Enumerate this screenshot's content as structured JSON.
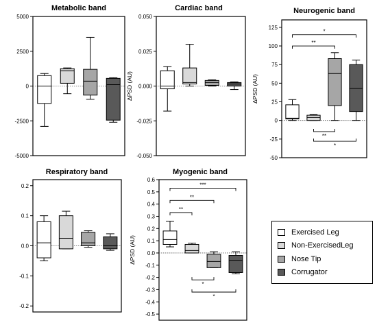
{
  "series_colors": {
    "Exercised Leg": "#ffffff",
    "Non-ExercisedLeg": "#d9d9d9",
    "Nose Tip": "#a6a6a6",
    "Corrugator": "#595959"
  },
  "legend": {
    "items": [
      {
        "label": "Exercised Leg",
        "color": "#ffffff"
      },
      {
        "label": "Non-ExercisedLeg",
        "color": "#d9d9d9"
      },
      {
        "label": "Nose Tip",
        "color": "#a6a6a6"
      },
      {
        "label": "Corrugator",
        "color": "#595959"
      }
    ]
  },
  "chart_data": [
    {
      "type": "box",
      "title": "Metabolic band",
      "ylabel": "",
      "ylim": [
        -5000,
        5000
      ],
      "yticks": [
        -5000,
        -2500,
        0,
        2500,
        5000
      ],
      "tick_labels": [
        "-5000",
        "-2500",
        "0",
        "2500",
        "5000"
      ],
      "zero_line": true,
      "categories": [
        "Exercised Leg",
        "Non-ExercisedLeg",
        "Nose Tip",
        "Corrugator"
      ],
      "boxes": [
        {
          "min": -2900,
          "q1": -1250,
          "median": 0,
          "q3": 750,
          "max": 900
        },
        {
          "min": -550,
          "q1": 200,
          "median": 1100,
          "q3": 1250,
          "max": 1300
        },
        {
          "min": -950,
          "q1": -650,
          "median": 350,
          "q3": 1200,
          "max": 3500
        },
        {
          "min": -2600,
          "q1": -2450,
          "median": 100,
          "q3": 550,
          "max": 600
        }
      ],
      "significance": []
    },
    {
      "type": "box",
      "title": "Cardiac band",
      "ylabel": "ΔPSD (AU)",
      "ylim": [
        -0.05,
        0.05
      ],
      "yticks": [
        -0.05,
        -0.025,
        0,
        0.025,
        0.05
      ],
      "tick_labels": [
        "-0.050",
        "-0.025",
        "0.000",
        "0.025",
        "0.050"
      ],
      "zero_line": true,
      "categories": [
        "Exercised Leg",
        "Non-ExercisedLeg",
        "Nose Tip",
        "Corrugator"
      ],
      "boxes": [
        {
          "min": -0.018,
          "q1": -0.002,
          "median": 0.0,
          "q3": 0.011,
          "max": 0.014
        },
        {
          "min": 0.0,
          "q1": 0.0015,
          "median": 0.0025,
          "q3": 0.013,
          "max": 0.03
        },
        {
          "min": 0.0,
          "q1": 0.0005,
          "median": 0.0025,
          "q3": 0.004,
          "max": 0.0045
        },
        {
          "min": -0.0025,
          "q1": 0.0,
          "median": 0.0015,
          "q3": 0.0025,
          "max": 0.003
        }
      ],
      "significance": []
    },
    {
      "type": "box",
      "title": "Neurogenic band",
      "ylabel": "ΔPSD (AU)",
      "ylim": [
        -50,
        135
      ],
      "yticks": [
        -50,
        -25,
        0,
        25,
        50,
        75,
        100,
        125
      ],
      "tick_labels": [
        "-50",
        "-25",
        "0",
        "25",
        "50",
        "75",
        "100",
        "125"
      ],
      "zero_line": true,
      "categories": [
        "Exercised Leg",
        "Non-ExercisedLeg",
        "Nose Tip",
        "Corrugator"
      ],
      "boxes": [
        {
          "min": 0,
          "q1": 2,
          "median": 3,
          "q3": 21,
          "max": 28
        },
        {
          "min": 0,
          "q1": 0,
          "median": 4,
          "q3": 7,
          "max": 8
        },
        {
          "min": 0,
          "q1": 20,
          "median": 63,
          "q3": 83,
          "max": 91
        },
        {
          "min": 0,
          "q1": 12,
          "median": 43,
          "q3": 75,
          "max": 81
        }
      ],
      "significance": [
        {
          "from": 0,
          "to": 2,
          "y": 100,
          "label": "**"
        },
        {
          "from": 0,
          "to": 3,
          "y": 115,
          "label": "*"
        },
        {
          "from": 1,
          "to": 2,
          "y": -15,
          "label": "**",
          "below": true
        },
        {
          "from": 1,
          "to": 3,
          "y": -28,
          "label": "*",
          "below": true
        }
      ]
    },
    {
      "type": "box",
      "title": "Respiratory band",
      "ylabel": "",
      "ylim": [
        -0.22,
        0.22
      ],
      "yticks": [
        -0.2,
        -0.1,
        0,
        0.1,
        0.2
      ],
      "tick_labels": [
        "-0.2",
        "-0.1",
        "0.0",
        "0.1",
        "0.2"
      ],
      "zero_line": true,
      "categories": [
        "Exercised Leg",
        "Non-ExercisedLeg",
        "Nose Tip",
        "Corrugator"
      ],
      "boxes": [
        {
          "min": -0.05,
          "q1": -0.04,
          "median": 0.01,
          "q3": 0.08,
          "max": 0.1
        },
        {
          "min": -0.01,
          "q1": -0.01,
          "median": 0.025,
          "q3": 0.1,
          "max": 0.115
        },
        {
          "min": -0.005,
          "q1": 0.0,
          "median": 0.01,
          "q3": 0.045,
          "max": 0.05
        },
        {
          "min": -0.015,
          "q1": -0.01,
          "median": 0.0,
          "q3": 0.03,
          "max": 0.04
        }
      ],
      "significance": []
    },
    {
      "type": "box",
      "title": "Myogenic band",
      "ylabel": "ΔPSD (AU)",
      "ylim": [
        -0.55,
        0.6
      ],
      "yticks": [
        -0.5,
        -0.4,
        -0.3,
        -0.2,
        -0.1,
        0,
        0.1,
        0.2,
        0.3,
        0.4,
        0.5,
        0.6
      ],
      "tick_labels": [
        "-0.5",
        "-0.4",
        "-0.3",
        "-0.2",
        "-0.1",
        "0.0",
        "0.1",
        "0.2",
        "0.3",
        "0.4",
        "0.5",
        "0.6"
      ],
      "zero_line": true,
      "categories": [
        "Exercised Leg",
        "Non-ExercisedLeg",
        "Nose Tip",
        "Corrugator"
      ],
      "boxes": [
        {
          "min": 0.05,
          "q1": 0.07,
          "median": 0.11,
          "q3": 0.18,
          "max": 0.26
        },
        {
          "min": 0.0,
          "q1": 0.0,
          "median": 0.02,
          "q3": 0.07,
          "max": 0.08
        },
        {
          "min": -0.12,
          "q1": -0.12,
          "median": -0.07,
          "q3": -0.01,
          "max": 0.01
        },
        {
          "min": -0.17,
          "q1": -0.16,
          "median": -0.06,
          "q3": -0.02,
          "max": 0.01
        }
      ],
      "significance": [
        {
          "from": 0,
          "to": 1,
          "y": 0.33,
          "label": "**"
        },
        {
          "from": 0,
          "to": 2,
          "y": 0.43,
          "label": "**"
        },
        {
          "from": 0,
          "to": 3,
          "y": 0.53,
          "label": "***"
        },
        {
          "from": 1,
          "to": 2,
          "y": -0.22,
          "label": "*",
          "below": true
        },
        {
          "from": 1,
          "to": 3,
          "y": -0.32,
          "label": "*",
          "below": true
        }
      ]
    }
  ]
}
